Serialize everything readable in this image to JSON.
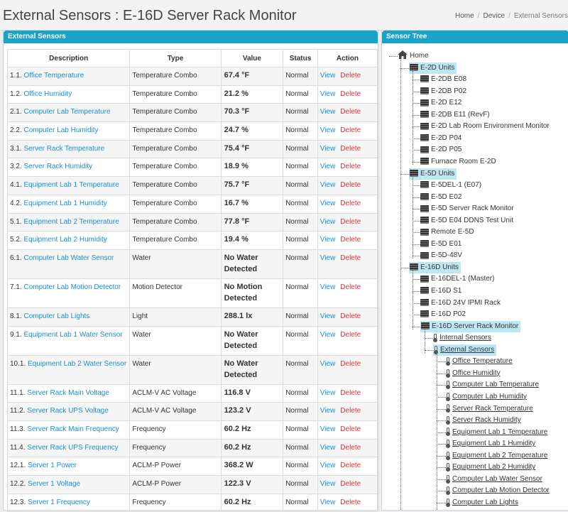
{
  "page": {
    "title": "External Sensors : E-16D Server Rack Monitor"
  },
  "breadcrumb": [
    "Home",
    "Device",
    "External Sensors"
  ],
  "left_panel": {
    "title": "External Sensors"
  },
  "right_panel": {
    "title": "Sensor Tree"
  },
  "table": {
    "headers": [
      "Description",
      "Type",
      "Value",
      "Status",
      "Action"
    ],
    "view_label": "View",
    "delete_label": "Delete",
    "rows": [
      {
        "num": "1.1.",
        "name": "Office Temperature",
        "type": "Temperature Combo",
        "value": "67.4 °F",
        "status": "Normal"
      },
      {
        "num": "1.2.",
        "name": "Office Humidity",
        "type": "Temperature Combo",
        "value": "21.2 %",
        "status": "Normal"
      },
      {
        "num": "2.1.",
        "name": "Computer Lab Temperature",
        "type": "Temperature Combo",
        "value": "70.3 °F",
        "status": "Normal"
      },
      {
        "num": "2.2.",
        "name": "Computer Lab Humidity",
        "type": "Temperature Combo",
        "value": "24.7 %",
        "status": "Normal"
      },
      {
        "num": "3.1.",
        "name": "Server Rack Temperature",
        "type": "Temperature Combo",
        "value": "75.4 °F",
        "status": "Normal"
      },
      {
        "num": "3.2.",
        "name": "Server Rack Humidity",
        "type": "Temperature Combo",
        "value": "18.9 %",
        "status": "Normal"
      },
      {
        "num": "4.1.",
        "name": "Equipment Lab 1 Temperature",
        "type": "Temperature Combo",
        "value": "75.7 °F",
        "status": "Normal"
      },
      {
        "num": "4.2.",
        "name": "Equipment Lab 1 Humidity",
        "type": "Temperature Combo",
        "value": "16.7 %",
        "status": "Normal"
      },
      {
        "num": "5.1.",
        "name": "Equipment Lab 2 Temperature",
        "type": "Temperature Combo",
        "value": "77.8 °F",
        "status": "Normal"
      },
      {
        "num": "5.2.",
        "name": "Equipment Lab 2 Humidity",
        "type": "Temperature Combo",
        "value": "19.4 %",
        "status": "Normal"
      },
      {
        "num": "6.1.",
        "name": "Computer Lab Water Sensor",
        "type": "Water",
        "value": "No Water Detected",
        "status": "Normal"
      },
      {
        "num": "7.1.",
        "name": "Computer Lab Motion Detector",
        "type": "Motion Detector",
        "value": "No Motion Detected",
        "status": "Normal"
      },
      {
        "num": "8.1.",
        "name": "Computer Lab Lights",
        "type": "Light",
        "value": "288.1 lx",
        "status": "Normal"
      },
      {
        "num": "9.1.",
        "name": "Equipment Lab 1 Water Sensor",
        "type": "Water",
        "value": "No Water Detected",
        "status": "Normal"
      },
      {
        "num": "10.1.",
        "name": "Equipment Lab 2 Water Sensor",
        "type": "Water",
        "value": "No Water Detected",
        "status": "Normal"
      },
      {
        "num": "11.1.",
        "name": "Server Rack Main Voltage",
        "type": "ACLM-V AC Voltage",
        "value": "116.8 V",
        "status": "Normal"
      },
      {
        "num": "11.2.",
        "name": "Server Rack UPS Voltage",
        "type": "ACLM-V AC Voltage",
        "value": "123.2 V",
        "status": "Normal"
      },
      {
        "num": "11.3.",
        "name": "Server Rack Main Frequency",
        "type": "Frequency",
        "value": "60.2 Hz",
        "status": "Normal"
      },
      {
        "num": "11.4.",
        "name": "Server Rack UPS Frequency",
        "type": "Frequency",
        "value": "60.2 Hz",
        "status": "Normal"
      },
      {
        "num": "12.1.",
        "name": "Server 1 Power",
        "type": "ACLM-P Power",
        "value": "368.2 W",
        "status": "Normal"
      },
      {
        "num": "12.2.",
        "name": "Server 1 Voltage",
        "type": "ACLM-P Power",
        "value": "122.3 V",
        "status": "Normal"
      },
      {
        "num": "12.3.",
        "name": "Server 1 Frequency",
        "type": "Frequency",
        "value": "60.2 Hz",
        "status": "Normal"
      }
    ]
  },
  "tree": {
    "home": "Home",
    "groups": [
      {
        "label": "E-2D Units",
        "children": [
          "E-2DB E08",
          "E-2DB P02",
          "E-2D E12",
          "E-2DB E11 (RevF)",
          "E-2D Lab Room Environment Monitor",
          "E-2D P04",
          "E-2D P05",
          "Furnace Room E-2D"
        ]
      },
      {
        "label": "E-5D Units",
        "children": [
          "E-5DEL-1 (E07)",
          "E-5D E02",
          "E-5D Server Rack Monitor",
          "E-5D E04 DDNS Test Unit",
          "Remote E-5D",
          "E-5D E01",
          "E-5D-48V"
        ]
      },
      {
        "label": "E-16D Units",
        "children": [
          "E-16DEL-1 (Master)",
          "E-16D S1",
          "E-16D 24V IPMI Rack",
          "E-16D P02",
          "E-16D Server Rack Monitor"
        ]
      }
    ],
    "device_children": [
      "Internal Sensors",
      "External Sensors"
    ],
    "sensors": [
      "Office Temperature",
      "Office Humidity",
      "Computer Lab Temperature",
      "Computer Lab Humidity",
      "Server Rack Temperature",
      "Server Rack Humidity",
      "Equipment Lab 1 Temperature",
      "Equipment Lab 1 Humidity",
      "Equipment Lab 2 Temperature",
      "Equipment Lab 2 Humidity",
      "Computer Lab Water Sensor",
      "Computer Lab Motion Detector",
      "Computer Lab Lights"
    ]
  }
}
